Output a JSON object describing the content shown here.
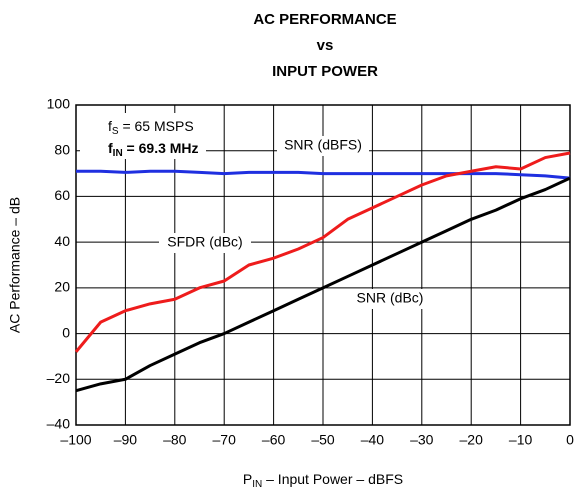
{
  "chart_data": {
    "type": "line",
    "title": [
      "AC PERFORMANCE",
      "vs",
      "INPUT POWER"
    ],
    "xlabel": [
      "P",
      "IN",
      " – Input Power – dBFS"
    ],
    "ylabel": "AC Performance – dB",
    "x": [
      -100,
      -95,
      -90,
      -85,
      -80,
      -75,
      -70,
      -65,
      -60,
      -55,
      -50,
      -45,
      -40,
      -35,
      -30,
      -25,
      -20,
      -15,
      -10,
      -5,
      0
    ],
    "series": [
      {
        "name": "SNR (dBFS)",
        "color": "#1f2fe0",
        "values": [
          71,
          71,
          70.5,
          71,
          71,
          70.5,
          70,
          70.5,
          70.5,
          70.5,
          70,
          70,
          70,
          70,
          70,
          70,
          70,
          70,
          69.5,
          69,
          68
        ]
      },
      {
        "name": "SFDR (dBc)",
        "color": "#ee1c1c",
        "values": [
          -8,
          5,
          10,
          13,
          15,
          20,
          23,
          30,
          33,
          37,
          42,
          50,
          55,
          60,
          65,
          69,
          71,
          73,
          72,
          77,
          79
        ]
      },
      {
        "name": "SNR (dBc)",
        "color": "#000000",
        "values": [
          -25,
          -22,
          -20,
          -14,
          -9,
          -4,
          0,
          5,
          10,
          15,
          20,
          25,
          30,
          35,
          40,
          45,
          50,
          54,
          59,
          63,
          68
        ]
      }
    ],
    "annotations": [
      [
        "f",
        "S",
        " = 65 MSPS"
      ],
      [
        "f",
        "IN",
        " = 69.3 MHz"
      ]
    ],
    "xlim": [
      -100,
      0
    ],
    "xticks": [
      {
        "value": -100,
        "label": "–100"
      },
      {
        "value": -90,
        "label": "–90"
      },
      {
        "value": -80,
        "label": "–80"
      },
      {
        "value": -70,
        "label": "–70"
      },
      {
        "value": -60,
        "label": "–60"
      },
      {
        "value": -50,
        "label": "–50"
      },
      {
        "value": -40,
        "label": "–40"
      },
      {
        "value": -30,
        "label": "–30"
      },
      {
        "value": -20,
        "label": "–20"
      },
      {
        "value": -10,
        "label": "–10"
      },
      0
    ],
    "ylim": [
      -40,
      100
    ],
    "yticks": [
      {
        "value": -40,
        "label": "–40"
      },
      {
        "value": -20,
        "label": "–20"
      },
      0,
      20,
      40,
      60,
      80,
      100
    ],
    "grid": true
  }
}
